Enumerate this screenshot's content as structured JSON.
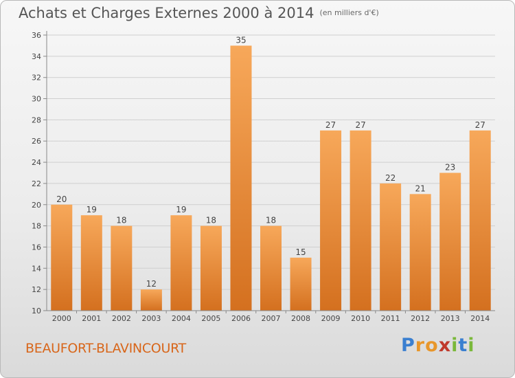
{
  "header": {
    "title": "Achats et Charges Externes 2000 à 2014",
    "unit": "(en milliers d'€)"
  },
  "footer": {
    "place": "BEAUFORT-BLAVINCOURT",
    "brand": "Proxiti"
  },
  "colors": {
    "bar_top": "#f7a85a",
    "bar_bottom": "#d4701f",
    "place_text": "#d8661a",
    "brand": [
      "#3a7fd0",
      "#e8962a",
      "#e8962a",
      "#c0392b",
      "#7ab83a",
      "#3a7fd0",
      "#7ab83a"
    ]
  },
  "chart_data": {
    "type": "bar",
    "title": "Achats et Charges Externes 2000 à 2014",
    "subtitle": "(en milliers d'€)",
    "categories": [
      "2000",
      "2001",
      "2002",
      "2003",
      "2004",
      "2005",
      "2006",
      "2007",
      "2008",
      "2009",
      "2010",
      "2011",
      "2012",
      "2013",
      "2014"
    ],
    "values": [
      20,
      19,
      18,
      12,
      19,
      18,
      35,
      18,
      15,
      27,
      27,
      22,
      21,
      23,
      27
    ],
    "ylim": [
      10,
      36
    ],
    "yticks": [
      10,
      12,
      14,
      16,
      18,
      20,
      22,
      24,
      26,
      28,
      30,
      32,
      34,
      36
    ],
    "grid": true,
    "data_labels": true
  }
}
